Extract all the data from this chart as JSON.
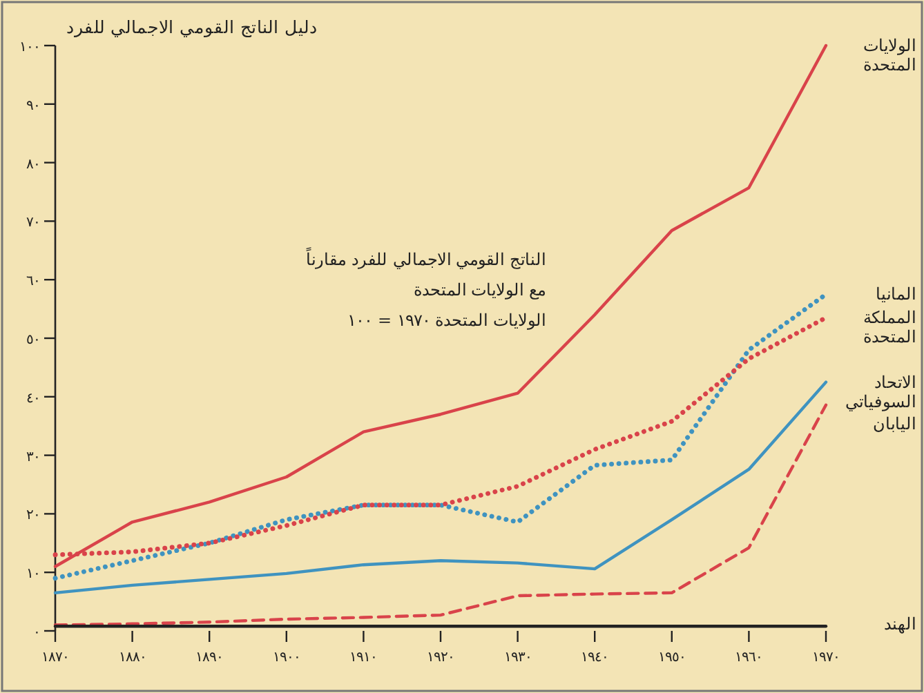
{
  "chart_data": {
    "type": "line",
    "ylabel": "دليل الناتج القومي الاجمالي للفرد",
    "annotations": [
      "الناتج القومي الاجمالي للفرد مقارناً",
      "مع الولايات المتحدة",
      "الولايات المتحدة ١٩٧٠ = ١٠٠"
    ],
    "x": [
      1870,
      1880,
      1890,
      1900,
      1910,
      1920,
      1930,
      1940,
      1950,
      1960,
      1970
    ],
    "xlim": [
      1870,
      1970
    ],
    "xticks": [
      {
        "value": 1870,
        "label": "١٨٧٠"
      },
      {
        "value": 1880,
        "label": "١٨٨٠"
      },
      {
        "value": 1890,
        "label": "١٨٩٠"
      },
      {
        "value": 1900,
        "label": "١٩٠٠"
      },
      {
        "value": 1910,
        "label": "١٩١٠"
      },
      {
        "value": 1920,
        "label": "١٩٢٠"
      },
      {
        "value": 1930,
        "label": "١٩٣٠"
      },
      {
        "value": 1940,
        "label": "١٩٤٠"
      },
      {
        "value": 1950,
        "label": "١٩٥٠"
      },
      {
        "value": 1960,
        "label": "١٩٦٠"
      },
      {
        "value": 1970,
        "label": "١٩٧٠"
      }
    ],
    "ylim": [
      0,
      100
    ],
    "yticks": [
      {
        "value": 0,
        "label": "٠"
      },
      {
        "value": 10,
        "label": "١٠"
      },
      {
        "value": 20,
        "label": "٢٠"
      },
      {
        "value": 30,
        "label": "٣٠"
      },
      {
        "value": 40,
        "label": "٤٠"
      },
      {
        "value": 50,
        "label": "٥٠"
      },
      {
        "value": 60,
        "label": "٦٠"
      },
      {
        "value": 70,
        "label": "٧٠"
      },
      {
        "value": 80,
        "label": "٨٠"
      },
      {
        "value": 90,
        "label": "٩٠"
      },
      {
        "value": 100,
        "label": "١٠٠"
      }
    ],
    "marker": "none",
    "legend": false,
    "grid": false,
    "series": [
      {
        "name": "الولايات المتحدة",
        "color": "#d9434a",
        "line_style": "solid",
        "values": [
          11,
          18.6,
          22,
          26.3,
          34,
          37,
          40.6,
          54,
          68.4,
          75.7,
          100
        ]
      },
      {
        "name": "المانيا",
        "color": "#3f93c0",
        "line_style": "dotted",
        "values": [
          9,
          12,
          15,
          19,
          21.5,
          21.5,
          18.6,
          28.3,
          29.2,
          48,
          57.5
        ]
      },
      {
        "name": "المملكة المتحدة",
        "color": "#d9434a",
        "line_style": "dotted",
        "values": [
          13,
          13.5,
          15,
          18,
          21.5,
          21.5,
          24.7,
          31,
          35.8,
          46.5,
          53.5
        ]
      },
      {
        "name": "الاتحاد السوفياتي",
        "color": "#3f93c0",
        "line_style": "solid",
        "values": [
          6.5,
          7.8,
          8.8,
          9.8,
          11.3,
          12,
          11.6,
          10.6,
          19,
          27.6,
          42.5
        ]
      },
      {
        "name": "اليابان",
        "color": "#d9434a",
        "line_style": "dashed",
        "values": [
          1,
          1.2,
          1.5,
          2,
          2.3,
          2.7,
          6,
          6.3,
          6.5,
          14.2,
          38.6
        ]
      },
      {
        "name": "الهند",
        "color": "#222222",
        "line_style": "solid",
        "values": [
          0.8,
          0.8,
          0.8,
          0.8,
          0.8,
          0.8,
          0.8,
          0.8,
          0.8,
          0.8,
          0.8
        ]
      }
    ]
  }
}
